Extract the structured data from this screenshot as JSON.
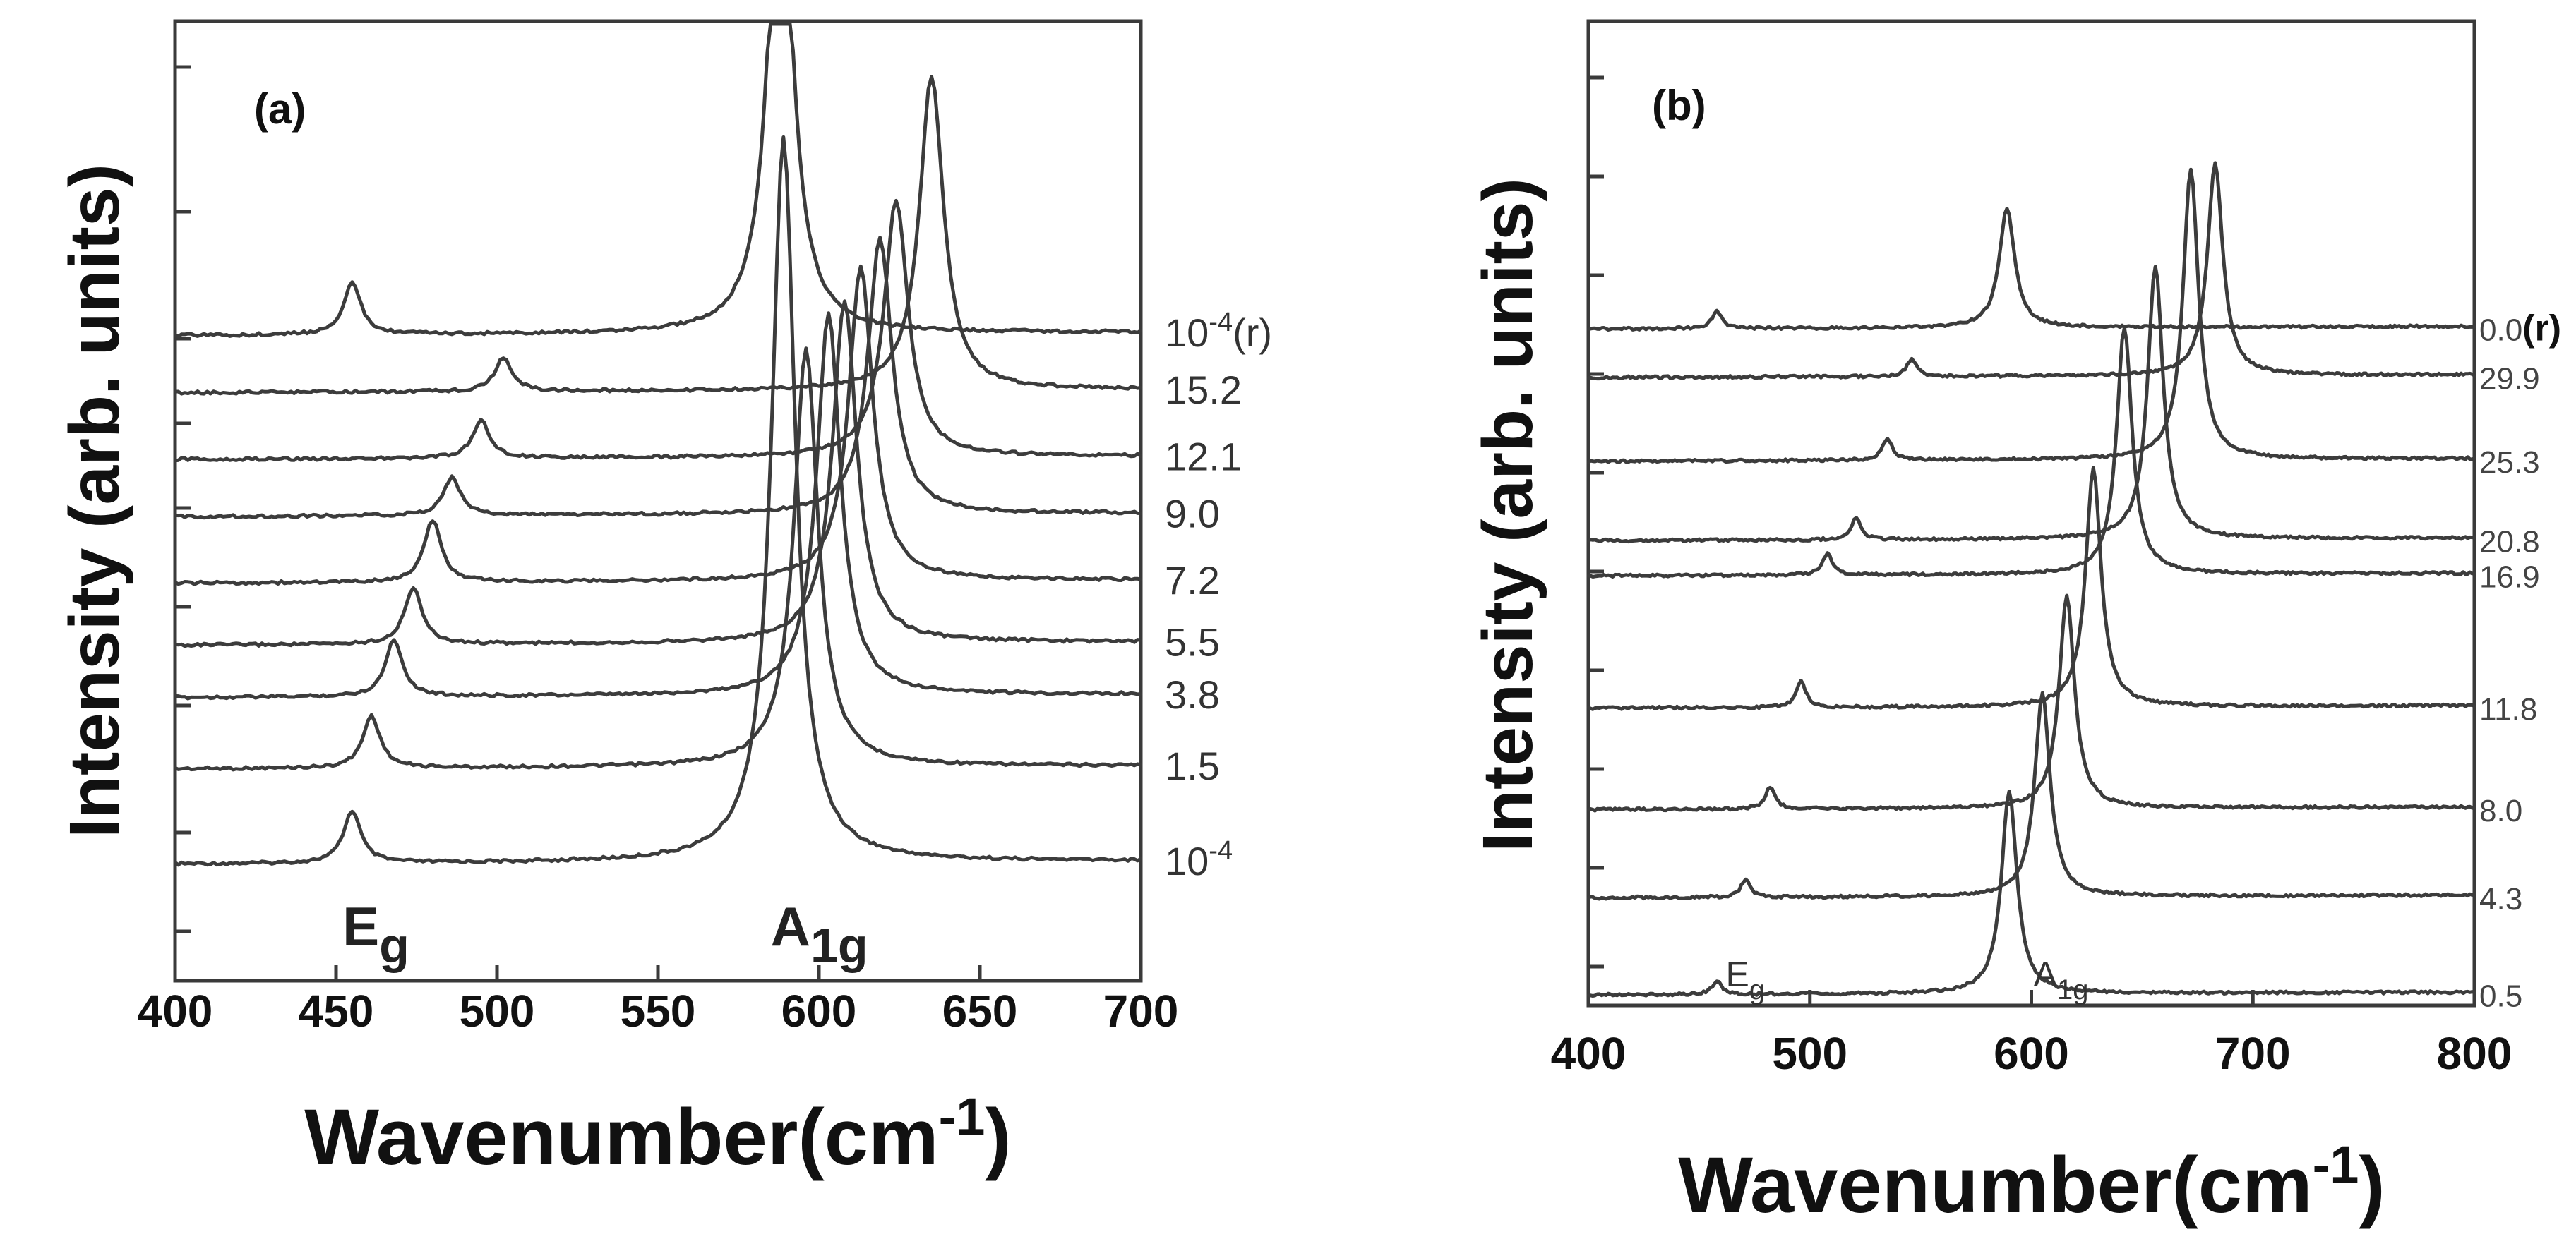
{
  "chart_data": [
    {
      "type": "line",
      "panel_label": "(a)",
      "xlabel": "Wavenumber(cm-1)",
      "xlabel_base": "Wavenumber(cm",
      "xlabel_sup": "-1",
      "xlabel_close": ")",
      "ylabel": "Intensity (arb. units)",
      "xlim": [
        400,
        700
      ],
      "x_ticks": [
        "400",
        "450",
        "500",
        "550",
        "600",
        "650",
        "700"
      ],
      "annotations": [
        {
          "base": "E",
          "sub": "g",
          "x": 452
        },
        {
          "base": "A",
          "sub": "1g",
          "x": 585
        }
      ],
      "series": [
        {
          "name": "10-4",
          "label_base": "10",
          "label_sup": "-4",
          "label_suffix": "",
          "eg": 455,
          "a1g": 589,
          "a1g_height": 7.6,
          "eg_height": 0.55,
          "baseline": 0.0
        },
        {
          "name": "1.5",
          "label_base": "1.5",
          "label_sup": "",
          "label_suffix": "",
          "eg": 461,
          "a1g": 596,
          "a1g_height": 4.4,
          "eg_height": 0.55,
          "baseline": 1.0
        },
        {
          "name": "3.8",
          "label_base": "3.8",
          "label_sup": "",
          "label_suffix": "",
          "eg": 468,
          "a1g": 603,
          "a1g_height": 4.0,
          "eg_height": 0.6,
          "baseline": 1.75
        },
        {
          "name": "5.5",
          "label_base": "5.5",
          "label_sup": "",
          "label_suffix": "",
          "eg": 474,
          "a1g": 608,
          "a1g_height": 3.6,
          "eg_height": 0.6,
          "baseline": 2.3
        },
        {
          "name": "7.2",
          "label_base": "7.2",
          "label_sup": "",
          "label_suffix": "",
          "eg": 480,
          "a1g": 613,
          "a1g_height": 3.3,
          "eg_height": 0.65,
          "baseline": 2.95
        },
        {
          "name": "9.0",
          "label_base": "9.0",
          "label_sup": "",
          "label_suffix": "",
          "eg": 486,
          "a1g": 619,
          "a1g_height": 2.9,
          "eg_height": 0.4,
          "baseline": 3.65
        },
        {
          "name": "12.1",
          "label_base": "12.1",
          "label_sup": "",
          "label_suffix": "",
          "eg": 495,
          "a1g": 624,
          "a1g_height": 2.7,
          "eg_height": 0.4,
          "baseline": 4.25
        },
        {
          "name": "15.2",
          "label_base": "15.2",
          "label_sup": "",
          "label_suffix": "",
          "eg": 502,
          "a1g": 635,
          "a1g_height": 3.3,
          "eg_height": 0.35,
          "baseline": 4.95
        },
        {
          "name": "10-4(r)",
          "label_base": "10",
          "label_sup": "-4",
          "label_suffix": "(r)",
          "eg": 455,
          "a1g": 588,
          "a1g_height": 5.3,
          "eg_height": 0.55,
          "baseline": 5.55
        }
      ]
    },
    {
      "type": "line",
      "panel_label": "(b)",
      "xlabel": "Wavenumber(cm-1)",
      "xlabel_base": "Wavenumber(cm",
      "xlabel_sup": "-1",
      "xlabel_close": ")",
      "ylabel": "Intensity (arb. units)",
      "xlim": [
        400,
        800
      ],
      "x_ticks": [
        "400",
        "500",
        "600",
        "700",
        "800"
      ],
      "annotations": [
        {
          "base": "E",
          "sub": "g",
          "x": 462
        },
        {
          "base": "A",
          "sub": "1g",
          "x": 601
        }
      ],
      "series": [
        {
          "name": "0.5",
          "label": "0.5",
          "label_bold_suffix": "",
          "eg": 458,
          "a1g": 590,
          "a1g_height": 2.3,
          "eg_height": 0.15,
          "baseline": 0.0
        },
        {
          "name": "4.3",
          "label": "4.3",
          "label_bold_suffix": "",
          "eg": 471,
          "a1g": 605,
          "a1g_height": 2.3,
          "eg_height": 0.2,
          "baseline": 1.1
        },
        {
          "name": "8.0",
          "label": "8.0",
          "label_bold_suffix": "",
          "eg": 482,
          "a1g": 616,
          "a1g_height": 2.4,
          "eg_height": 0.25,
          "baseline": 2.1
        },
        {
          "name": "11.8",
          "label": "11.8",
          "label_bold_suffix": "",
          "eg": 496,
          "a1g": 628,
          "a1g_height": 2.7,
          "eg_height": 0.3,
          "baseline": 3.25
        },
        {
          "name": "16.9",
          "label": "16.9",
          "label_bold_suffix": "",
          "eg": 508,
          "a1g": 642,
          "a1g_height": 2.8,
          "eg_height": 0.25,
          "baseline": 4.75
        },
        {
          "name": "20.8",
          "label": "20.8",
          "label_bold_suffix": "",
          "eg": 521,
          "a1g": 656,
          "a1g_height": 3.1,
          "eg_height": 0.25,
          "baseline": 5.15
        },
        {
          "name": "25.3",
          "label": "25.3",
          "label_bold_suffix": "",
          "eg": 535,
          "a1g": 672,
          "a1g_height": 3.3,
          "eg_height": 0.25,
          "baseline": 6.05
        },
        {
          "name": "29.9",
          "label": "29.9",
          "label_bold_suffix": "",
          "eg": 546,
          "a1g": 683,
          "a1g_height": 2.4,
          "eg_height": 0.2,
          "baseline": 7.0
        },
        {
          "name": "0.0(r)",
          "label": "0.0",
          "label_bold_suffix": "(r)",
          "eg": 458,
          "a1g": 589,
          "a1g_height": 1.35,
          "eg_height": 0.2,
          "baseline": 7.55
        }
      ]
    }
  ]
}
